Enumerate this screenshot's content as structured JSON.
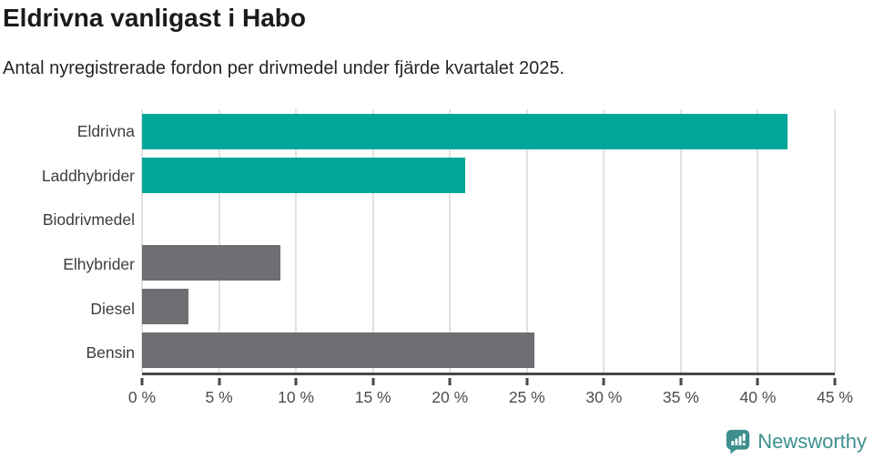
{
  "header": {
    "title": "Eldrivna vanligast i Habo",
    "subtitle": "Antal nyregistrerade fordon per drivmedel under fjärde kvartalet 2025."
  },
  "chart_data": {
    "type": "bar",
    "orientation": "horizontal",
    "title": "Eldrivna vanligast i Habo",
    "subtitle": "Antal nyregistrerade fordon per drivmedel under fjärde kvartalet 2025.",
    "categories": [
      "Eldrivna",
      "Laddhybrider",
      "Biodrivmedel",
      "Elhybrider",
      "Diesel",
      "Bensin"
    ],
    "values": [
      41.9,
      21,
      0,
      9,
      3,
      25.5
    ],
    "unit": "%",
    "xlabel": "",
    "ylabel": "",
    "xlim": [
      0,
      45
    ],
    "x_ticks": [
      0,
      5,
      10,
      15,
      20,
      25,
      30,
      35,
      40,
      45
    ],
    "x_tick_labels": [
      "0 %",
      "5 %",
      "10 %",
      "15 %",
      "20 %",
      "25 %",
      "30 %",
      "35 %",
      "40 %",
      "45 %"
    ],
    "bar_colors": [
      "#00a69a",
      "#00a69a",
      "#6e6e73",
      "#6e6e73",
      "#6e6e73",
      "#6e6e73"
    ],
    "grid": "vertical",
    "legend": "none"
  },
  "colors": {
    "accent_teal": "#00a69a",
    "neutral_gray": "#6e6e73",
    "gridline": "#e2e2e2",
    "axis": "#474747",
    "brand_teal": "#3e908e"
  },
  "footer": {
    "brand": "Newsworthy"
  }
}
